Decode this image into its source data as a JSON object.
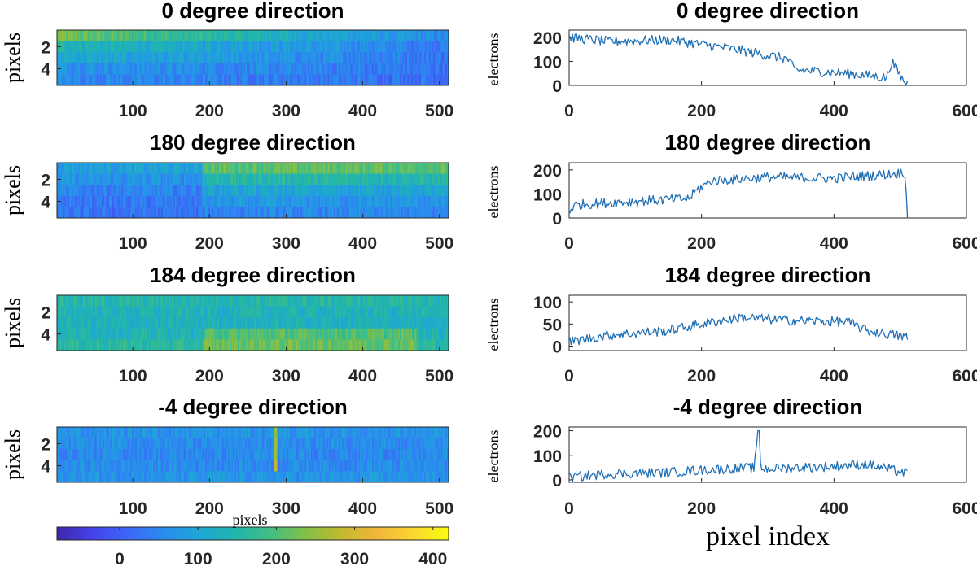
{
  "colormap": [
    "#3e26a8",
    "#4443eb",
    "#3c68f6",
    "#2a8cf0",
    "#1ea6d6",
    "#20b6ab",
    "#42be83",
    "#84c046",
    "#c3b92f",
    "#f2b63b",
    "#fad62e",
    "#f9fb0e"
  ],
  "line_color": "#1f6fb5",
  "chart_data": [
    {
      "type": "heatmap",
      "title": "0 degree direction",
      "ylabel": "pixels",
      "x_ticks": [
        100,
        200,
        300,
        400,
        500
      ],
      "y_ticks": [
        2,
        4
      ],
      "x_range": [
        1,
        512
      ],
      "rows": 5,
      "row_levels": [
        205,
        125,
        90,
        55,
        35
      ],
      "clim": [
        -80,
        420
      ]
    },
    {
      "type": "line",
      "title": "0 degree direction",
      "ylabel": "electrons",
      "x_ticks": [
        0,
        200,
        400,
        600
      ],
      "y_ticks": [
        0,
        100,
        200
      ],
      "xlim": [
        0,
        600
      ],
      "ylim": [
        0,
        230
      ],
      "profile": [
        [
          0,
          200
        ],
        [
          60,
          182
        ],
        [
          150,
          190
        ],
        [
          240,
          155
        ],
        [
          330,
          110
        ],
        [
          340,
          65
        ],
        [
          420,
          50
        ],
        [
          480,
          32
        ],
        [
          487,
          100
        ],
        [
          505,
          20
        ],
        [
          512,
          5
        ]
      ]
    },
    {
      "type": "heatmap",
      "title": "180 degree direction",
      "ylabel": "pixels",
      "x_ticks": [
        100,
        200,
        300,
        400,
        500
      ],
      "y_ticks": [
        2,
        4
      ],
      "x_range": [
        1,
        512
      ],
      "rows": 5,
      "row_levels": [
        210,
        150,
        100,
        70,
        50
      ],
      "clim": [
        -80,
        420
      ]
    },
    {
      "type": "line",
      "title": "180 degree direction",
      "ylabel": "electrons",
      "x_ticks": [
        0,
        200,
        400,
        600
      ],
      "y_ticks": [
        0,
        100,
        200
      ],
      "xlim": [
        0,
        600
      ],
      "ylim": [
        0,
        230
      ],
      "profile": [
        [
          0,
          30
        ],
        [
          10,
          55
        ],
        [
          100,
          70
        ],
        [
          180,
          80
        ],
        [
          195,
          120
        ],
        [
          215,
          155
        ],
        [
          300,
          170
        ],
        [
          400,
          165
        ],
        [
          495,
          185
        ],
        [
          508,
          190
        ],
        [
          510,
          5
        ],
        [
          512,
          0
        ]
      ]
    },
    {
      "type": "heatmap",
      "title": "184 degree direction",
      "ylabel": "pixels",
      "x_ticks": [
        100,
        200,
        300,
        400,
        500
      ],
      "y_ticks": [
        2,
        4
      ],
      "x_range": [
        1,
        512
      ],
      "rows": 5,
      "row_levels": [
        150,
        135,
        130,
        140,
        160
      ],
      "clim": [
        -80,
        420
      ]
    },
    {
      "type": "line",
      "title": "184 degree direction",
      "ylabel": "electrons",
      "x_ticks": [
        0,
        200,
        400,
        600
      ],
      "y_ticks": [
        0,
        50,
        100
      ],
      "xlim": [
        0,
        600
      ],
      "ylim": [
        -10,
        115
      ],
      "profile": [
        [
          0,
          10
        ],
        [
          60,
          25
        ],
        [
          150,
          35
        ],
        [
          200,
          50
        ],
        [
          260,
          65
        ],
        [
          330,
          58
        ],
        [
          420,
          55
        ],
        [
          450,
          35
        ],
        [
          510,
          20
        ],
        [
          512,
          15
        ]
      ]
    },
    {
      "type": "heatmap",
      "title": "-4 degree direction",
      "ylabel": "pixels",
      "x_ticks": [
        100,
        200,
        300,
        400,
        500
      ],
      "y_ticks": [
        2,
        4
      ],
      "x_range": [
        1,
        512
      ],
      "rows": 5,
      "row_levels": [
        70,
        60,
        55,
        60,
        70
      ],
      "clim": [
        -80,
        420
      ]
    },
    {
      "type": "line",
      "title": "-4 degree direction",
      "ylabel": "electrons",
      "xlabel": "pixel index",
      "x_ticks": [
        0,
        200,
        400,
        600
      ],
      "y_ticks": [
        0,
        100,
        200
      ],
      "xlim": [
        0,
        600
      ],
      "ylim": [
        -10,
        215
      ],
      "profile": [
        [
          0,
          10
        ],
        [
          60,
          25
        ],
        [
          150,
          30
        ],
        [
          200,
          40
        ],
        [
          280,
          50
        ],
        [
          285,
          200
        ],
        [
          290,
          45
        ],
        [
          400,
          55
        ],
        [
          450,
          65
        ],
        [
          512,
          25
        ]
      ]
    }
  ],
  "colorbar": {
    "label": "pixels",
    "ticks": [
      0,
      100,
      200,
      300,
      400
    ],
    "range": [
      -80,
      420
    ]
  }
}
